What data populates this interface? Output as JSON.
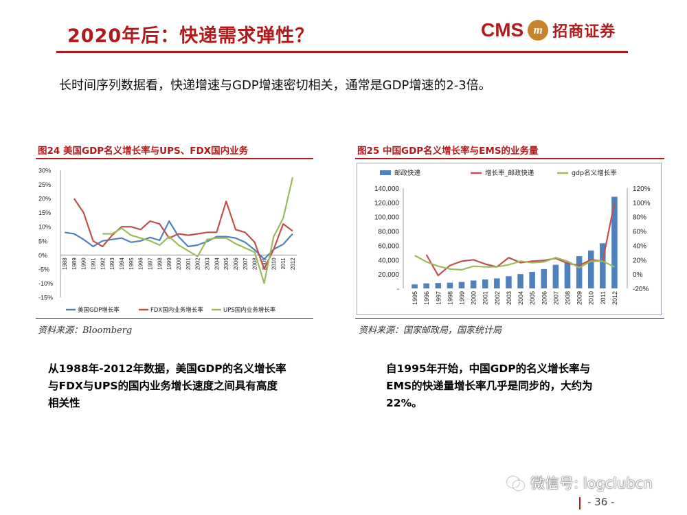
{
  "header": {
    "title": "2020年后：快递需求弹性？",
    "logo_text": "CMS",
    "logo_cn": "招商证券"
  },
  "intro": "长时间序列数据看，快递增速与GDP增速密切相关，通常是GDP增速的2-3倍。",
  "figures": [
    {
      "title": "图24  美国GDP名义增长率与UPS、FDX国内业务",
      "source": "资料来源：Bloomberg"
    },
    {
      "title": "图25  中国GDP名义增长率与EMS的业务量",
      "source": "资料来源：国家邮政局，国家统计局"
    }
  ],
  "captions": [
    [
      "从1988年-2012年数据，美国GDP的名义增长率",
      "与FDX与UPS的国内业务增长速度之间具有高度",
      "相关性"
    ],
    [
      "自1995年开始，中国GDP的名义增长率与",
      "EMS的快递量增长率几乎是同步的，大约为",
      "22%。"
    ]
  ],
  "watermark": "微信号: logclubcn",
  "page_number": "- 36 -",
  "colors": {
    "brand_red": "#b01a1a",
    "gdp_blue": "#4f81bd",
    "fdx_red": "#c0504d",
    "ups_green": "#9bbb59"
  },
  "chart_data": [
    {
      "type": "line",
      "x": [
        "1988",
        "1989",
        "1990",
        "1991",
        "1992",
        "1993",
        "1994",
        "1995",
        "1996",
        "1997",
        "1998",
        "1999",
        "2000",
        "2001",
        "2002",
        "2003",
        "2004",
        "2005",
        "2006",
        "2007",
        "2008",
        "2009",
        "2010",
        "2011",
        "2012"
      ],
      "ylim": [
        -15,
        30
      ],
      "yticks": [
        "-15%",
        "-10%",
        "-5%",
        "0%",
        "5%",
        "10%",
        "15%",
        "20%",
        "25%",
        "30%"
      ],
      "series": [
        {
          "name": "美国GDP增长率",
          "color": "#4f81bd",
          "values": [
            8,
            7.5,
            5.5,
            3,
            5,
            5.5,
            6,
            4.5,
            5,
            6.2,
            5.2,
            12,
            6.5,
            3,
            3.5,
            4.8,
            6.5,
            6.5,
            6,
            4.5,
            1.8,
            -1.5,
            2,
            3.8,
            7.5
          ]
        },
        {
          "name": "FDX国内业务增长率",
          "color": "#c0504d",
          "values": [
            null,
            20,
            15,
            5,
            3,
            7,
            10,
            10,
            9,
            12,
            11,
            6,
            7.5,
            7,
            7.5,
            8,
            8,
            19,
            9,
            8,
            4.5,
            -5,
            2,
            11,
            8.5
          ]
        },
        {
          "name": "UPS国内业务增长率",
          "color": "#9bbb59",
          "values": [
            null,
            null,
            null,
            null,
            7.5,
            7.5,
            9.5,
            7,
            6,
            5,
            3.5,
            6.5,
            3.5,
            1.5,
            -0.5,
            5.5,
            6,
            6,
            4,
            2.5,
            1,
            -10,
            6.5,
            13,
            27.5
          ]
        }
      ]
    },
    {
      "type": "bar",
      "x": [
        "1995",
        "1996",
        "1997",
        "1998",
        "1999",
        "2000",
        "2001",
        "2002",
        "2003",
        "2004",
        "2005",
        "2006",
        "2007",
        "2008",
        "2009",
        "2010",
        "2011",
        "2012"
      ],
      "ylim_left": [
        0,
        140000
      ],
      "yticks_left": [
        "-",
        "20,000",
        "40,000",
        "60,000",
        "80,000",
        "100,000",
        "120,000",
        "140,000"
      ],
      "ylim_right": [
        -20,
        120
      ],
      "yticks_right": [
        "-20%",
        "0%",
        "20%",
        "40%",
        "60%",
        "80%",
        "100%",
        "120%"
      ],
      "series": [
        {
          "name": "邮政快递",
          "type": "bar",
          "axis": "left",
          "color": "#4f81bd",
          "values": [
            5500,
            7000,
            7500,
            8000,
            9000,
            11000,
            12500,
            14000,
            17000,
            20000,
            23000,
            27000,
            33000,
            37000,
            45000,
            53000,
            63000,
            128000
          ]
        },
        {
          "name": "增长率_邮政快递",
          "type": "line",
          "axis": "right",
          "color": "#c0504d",
          "values": [
            null,
            27,
            -2,
            12,
            18,
            20,
            14,
            10,
            23,
            16,
            18,
            19,
            22,
            15,
            12,
            20,
            18,
            100
          ]
        },
        {
          "name": "gdp名义增长率",
          "type": "line",
          "axis": "right",
          "color": "#9bbb59",
          "values": [
            26,
            17,
            11,
            7,
            6,
            11,
            10,
            10,
            13,
            18,
            16,
            17,
            23,
            18,
            9,
            18,
            18,
            10
          ]
        }
      ]
    }
  ]
}
